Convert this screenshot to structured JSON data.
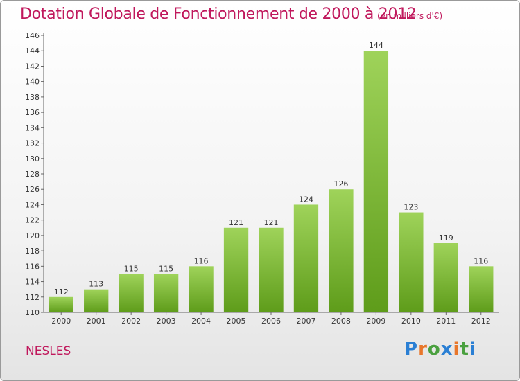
{
  "header": {
    "title": "Dotation Globale de Fonctionnement de 2000 à 2012",
    "unit": "(en milliers d'€)"
  },
  "footer": {
    "location": "NESLES",
    "logo": "Proxiti"
  },
  "colors": {
    "title": "#c0185c",
    "bar_top": "#9fd35a",
    "bar_bottom": "#5e9c1a"
  },
  "chart_data": {
    "type": "bar",
    "title": "Dotation Globale de Fonctionnement de 2000 à 2012",
    "subtitle": "(en milliers d'€)",
    "categories": [
      "2000",
      "2001",
      "2002",
      "2003",
      "2004",
      "2005",
      "2006",
      "2007",
      "2008",
      "2009",
      "2010",
      "2011",
      "2012"
    ],
    "values": [
      112,
      113,
      115,
      115,
      116,
      121,
      121,
      124,
      126,
      144,
      123,
      119,
      116
    ],
    "ylim": [
      110,
      146
    ],
    "yticks": [
      110,
      112,
      114,
      116,
      118,
      120,
      122,
      124,
      126,
      128,
      130,
      132,
      134,
      136,
      138,
      140,
      142,
      144,
      146
    ],
    "grid": false,
    "data_labels": true
  }
}
